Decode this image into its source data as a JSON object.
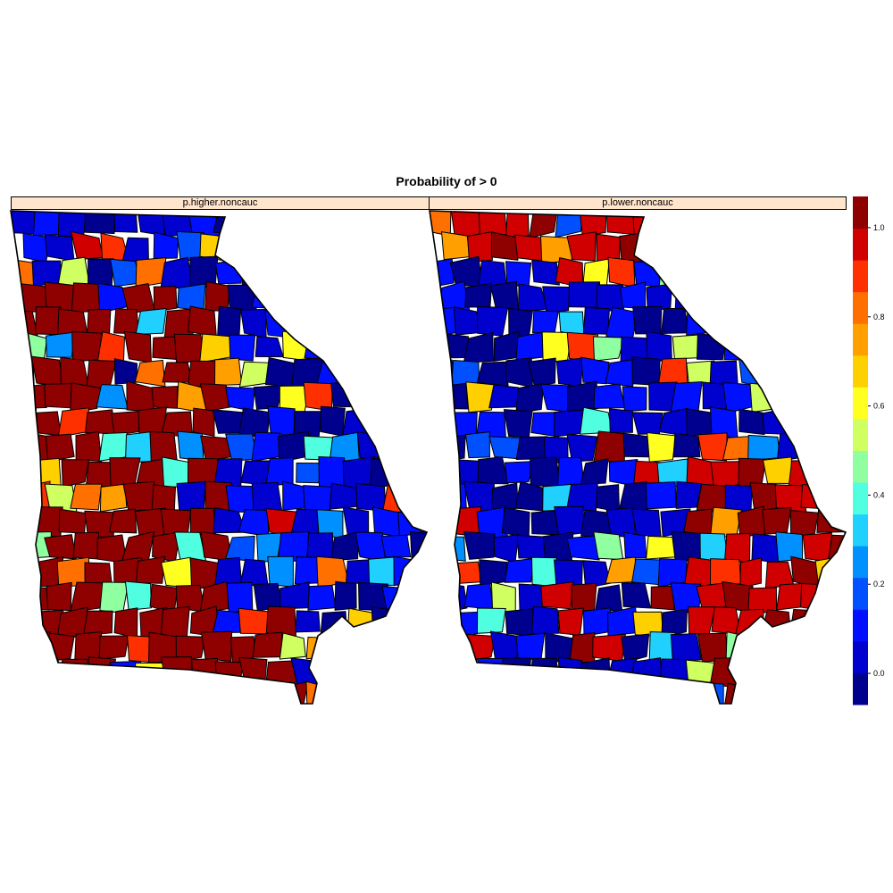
{
  "title": "Probability of > 0",
  "panels": [
    {
      "label": "p.higher.noncauc",
      "seed": 17
    },
    {
      "label": "p.lower.noncauc",
      "seed": 91
    }
  ],
  "colorkey": {
    "ticks": [
      "0.0",
      "0.2",
      "0.4",
      "0.6",
      "0.8",
      "1.0"
    ],
    "tick_values": [
      0.0,
      0.2,
      0.4,
      0.6,
      0.8,
      1.0
    ],
    "range": [
      -0.07,
      1.07
    ],
    "colors": [
      "#00008F",
      "#0000CF",
      "#0010FF",
      "#0050FF",
      "#0090FF",
      "#20D0FF",
      "#50FFDF",
      "#90FFA0",
      "#CFFF60",
      "#FFFF20",
      "#FFD000",
      "#FFA000",
      "#FF7000",
      "#FF3000",
      "#D00000",
      "#8F0000"
    ]
  }
}
